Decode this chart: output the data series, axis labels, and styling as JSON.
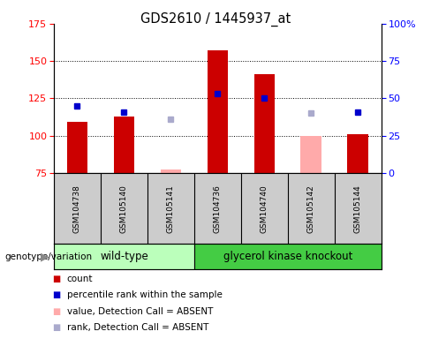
{
  "title": "GDS2610 / 1445937_at",
  "samples": [
    "GSM104738",
    "GSM105140",
    "GSM105141",
    "GSM104736",
    "GSM104740",
    "GSM105142",
    "GSM105144"
  ],
  "counts": [
    109,
    113,
    null,
    157,
    141,
    null,
    101
  ],
  "percentile_ranks": [
    120,
    116,
    null,
    128,
    125,
    null,
    116
  ],
  "absent_counts": [
    null,
    null,
    77,
    null,
    null,
    100,
    null
  ],
  "absent_ranks": [
    null,
    null,
    111,
    null,
    null,
    115,
    null
  ],
  "ylim_left": [
    75,
    175
  ],
  "ylim_right": [
    0,
    100
  ],
  "yticks_left": [
    75,
    100,
    125,
    150,
    175
  ],
  "yticks_right": [
    0,
    25,
    50,
    75,
    100
  ],
  "ytick_labels_right": [
    "0",
    "25",
    "50",
    "75",
    "100%"
  ],
  "bar_color": "#cc0000",
  "bar_absent_color": "#ffaaaa",
  "rank_color": "#0000cc",
  "rank_absent_color": "#aaaacc",
  "wt_color": "#bbffbb",
  "gk_color": "#44cc44",
  "sample_bg_color": "#cccccc",
  "grid_color": "#000000",
  "legend_items": [
    {
      "label": "count",
      "color": "#cc0000"
    },
    {
      "label": "percentile rank within the sample",
      "color": "#0000cc"
    },
    {
      "label": "value, Detection Call = ABSENT",
      "color": "#ffaaaa"
    },
    {
      "label": "rank, Detection Call = ABSENT",
      "color": "#aaaacc"
    }
  ],
  "wt_samples": 3,
  "gk_samples": 4
}
